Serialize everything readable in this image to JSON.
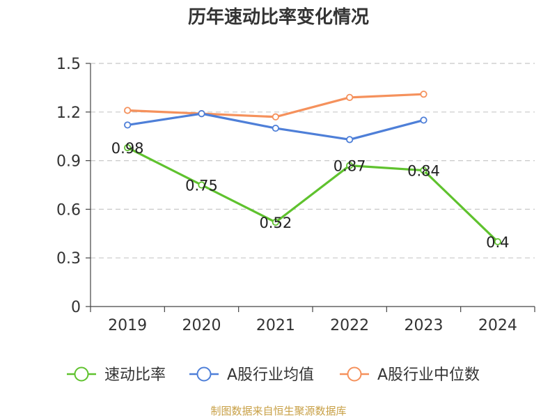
{
  "chart_data": {
    "type": "line",
    "title": "历年速动比率变化情况",
    "categories": [
      "2019",
      "2020",
      "2021",
      "2022",
      "2023",
      "2024"
    ],
    "ylim": [
      0,
      1.5
    ],
    "yticks": [
      "0",
      "0.3",
      "0.6",
      "0.9",
      "1.2",
      "1.5"
    ],
    "grid": true,
    "legend_position": "bottom",
    "series": [
      {
        "name": "速动比率",
        "color": "#5fc22e",
        "values": [
          0.98,
          0.75,
          0.52,
          0.87,
          0.84,
          0.4
        ],
        "labels": [
          "0.98",
          "0.75",
          "0.52",
          "0.87",
          "0.84",
          "0.4"
        ]
      },
      {
        "name": "A股行业均值",
        "color": "#4e7fd8",
        "values": [
          1.12,
          1.19,
          1.1,
          1.03,
          1.15,
          null
        ]
      },
      {
        "name": "A股行业中位数",
        "color": "#f5915c",
        "values": [
          1.21,
          1.19,
          1.17,
          1.29,
          1.31,
          null
        ]
      }
    ]
  },
  "source": "制图数据来自恒生聚源数据库"
}
